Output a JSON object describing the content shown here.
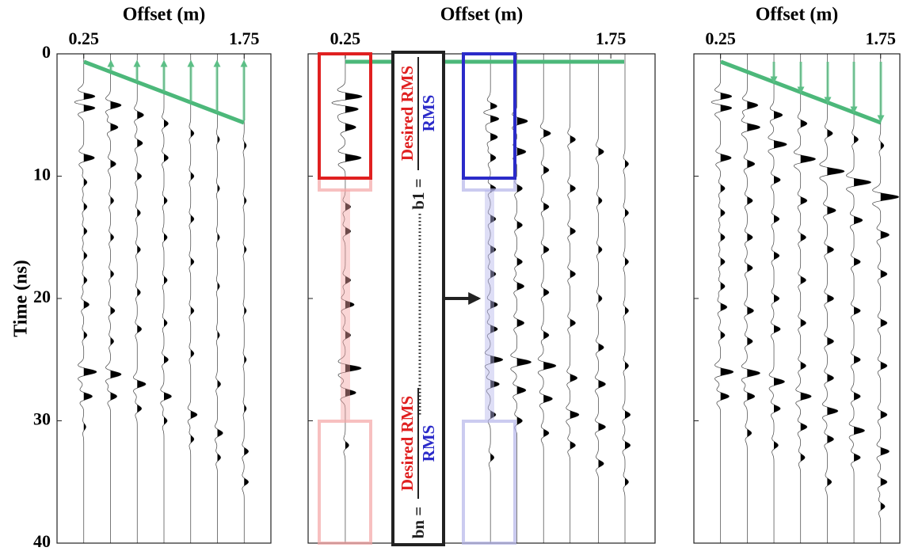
{
  "chart_data": [
    {
      "type": "wiggle",
      "x_label": "Offset (m)",
      "y_label": "Time (ns)",
      "xlim": [
        0,
        2
      ],
      "xticks": [
        0.25,
        1.75
      ],
      "ylim": [
        0,
        40
      ],
      "yticks": [
        0,
        10,
        20,
        30,
        40
      ],
      "y_inverted": true,
      "ytick_labels": true,
      "trace_color": "#000000",
      "fill_color": "#000000",
      "traces": [
        {
          "offset": 0.25,
          "events": [
            [
              3.5,
              0.12
            ],
            [
              4.4,
              0.12
            ],
            [
              8.5,
              0.1
            ],
            [
              10.5,
              0.03
            ],
            [
              12.5,
              0.03
            ],
            [
              14.5,
              0.03
            ],
            [
              16.5,
              0.03
            ],
            [
              18.5,
              0.03
            ],
            [
              20.5,
              0.05
            ],
            [
              23,
              0.03
            ],
            [
              26,
              0.12
            ],
            [
              28,
              0.08
            ],
            [
              30.5,
              0.02
            ]
          ]
        },
        {
          "offset": 0.5,
          "events": [
            [
              4.2,
              0.1
            ],
            [
              6,
              0.07
            ],
            [
              9,
              0.05
            ],
            [
              12,
              0.03
            ],
            [
              15,
              0.03
            ],
            [
              18,
              0.03
            ],
            [
              21,
              0.04
            ],
            [
              23.5,
              0.03
            ],
            [
              26.2,
              0.1
            ],
            [
              28,
              0.06
            ]
          ]
        },
        {
          "offset": 0.75,
          "events": [
            [
              5,
              0.06
            ],
            [
              7.3,
              0.05
            ],
            [
              10,
              0.04
            ],
            [
              13,
              0.03
            ],
            [
              16,
              0.03
            ],
            [
              19.5,
              0.03
            ],
            [
              22.5,
              0.04
            ],
            [
              27,
              0.08
            ],
            [
              29,
              0.04
            ]
          ]
        },
        {
          "offset": 1,
          "events": [
            [
              5.7,
              0.04
            ],
            [
              8.5,
              0.04
            ],
            [
              12,
              0.03
            ],
            [
              15,
              0.03
            ],
            [
              18.5,
              0.03
            ],
            [
              22,
              0.03
            ],
            [
              25,
              0.04
            ],
            [
              28,
              0.07
            ],
            [
              30,
              0.03
            ]
          ]
        },
        {
          "offset": 1.25,
          "events": [
            [
              6.5,
              0.03
            ],
            [
              10,
              0.03
            ],
            [
              13.5,
              0.03
            ],
            [
              17,
              0.03
            ],
            [
              21,
              0.03
            ],
            [
              24.5,
              0.03
            ],
            [
              29.5,
              0.06
            ],
            [
              31.5,
              0.03
            ]
          ]
        },
        {
          "offset": 1.5,
          "events": [
            [
              7,
              0.02
            ],
            [
              11,
              0.02
            ],
            [
              15,
              0.02
            ],
            [
              19,
              0.02
            ],
            [
              23,
              0.02
            ],
            [
              27,
              0.03
            ],
            [
              31,
              0.05
            ],
            [
              33,
              0.03
            ]
          ]
        },
        {
          "offset": 1.75,
          "events": [
            [
              7.5,
              0.02
            ],
            [
              12,
              0.02
            ],
            [
              16,
              0.02
            ],
            [
              21,
              0.02
            ],
            [
              25,
              0.02
            ],
            [
              29,
              0.02
            ],
            [
              32.5,
              0.04
            ],
            [
              35,
              0.04
            ]
          ]
        }
      ]
    },
    {
      "type": "wiggle",
      "x_label": "Offset (m)",
      "xlim": [
        0.04,
        2
      ],
      "xticks": [
        0.25,
        1.75
      ],
      "ylim": [
        0,
        40
      ],
      "yticks": [
        0,
        10,
        20,
        30,
        40
      ],
      "y_inverted": true,
      "ytick_labels": false,
      "trace_color": "#000000",
      "fill_color": "#000000",
      "annotations": {
        "bn": "bn =",
        "b1": "b1 =",
        "desired": "Desired RMS",
        "rms": "RMS"
      },
      "traces": [
        {
          "offset": 0.25,
          "events": [
            [
              3.5,
              0.1
            ],
            [
              4.5,
              0.08
            ],
            [
              6,
              0.06
            ],
            [
              8.5,
              0.09
            ],
            [
              12.5,
              0.03
            ],
            [
              14.5,
              0.03
            ],
            [
              18.5,
              0.03
            ],
            [
              20.5,
              0.05
            ],
            [
              23,
              0.03
            ],
            [
              25.7,
              0.09
            ],
            [
              27.7,
              0.06
            ],
            [
              32,
              0.02
            ]
          ]
        },
        {
          "offset": 1.07,
          "events": [
            [
              4.3,
              0.04
            ],
            [
              5.3,
              0.05
            ],
            [
              6.8,
              0.04
            ],
            [
              8.5,
              0.03
            ],
            [
              11,
              0.03
            ],
            [
              13.5,
              0.03
            ],
            [
              16,
              0.03
            ],
            [
              18,
              0.03
            ],
            [
              20.5,
              0.04
            ],
            [
              22.5,
              0.04
            ],
            [
              25,
              0.07
            ],
            [
              27,
              0.05
            ],
            [
              29.5,
              0.03
            ],
            [
              33,
              0.02
            ]
          ]
        },
        {
          "offset": 1.22,
          "events": [
            [
              5.5,
              0.06
            ],
            [
              8,
              0.05
            ],
            [
              11,
              0.03
            ],
            [
              14,
              0.03
            ],
            [
              17,
              0.03
            ],
            [
              19,
              0.04
            ],
            [
              22,
              0.04
            ],
            [
              25.2,
              0.08
            ],
            [
              27.5,
              0.05
            ],
            [
              30,
              0.03
            ]
          ]
        },
        {
          "offset": 1.37,
          "events": [
            [
              6.5,
              0.04
            ],
            [
              9.5,
              0.03
            ],
            [
              12.5,
              0.03
            ],
            [
              16,
              0.03
            ],
            [
              19.5,
              0.03
            ],
            [
              23,
              0.03
            ],
            [
              25.5,
              0.07
            ],
            [
              28.2,
              0.05
            ],
            [
              31,
              0.03
            ]
          ]
        },
        {
          "offset": 1.52,
          "events": [
            [
              7,
              0.03
            ],
            [
              11,
              0.03
            ],
            [
              14.5,
              0.03
            ],
            [
              18,
              0.03
            ],
            [
              22,
              0.03
            ],
            [
              26.5,
              0.04
            ],
            [
              29.5,
              0.05
            ],
            [
              32,
              0.03
            ]
          ]
        },
        {
          "offset": 1.68,
          "events": [
            [
              8,
              0.03
            ],
            [
              12,
              0.02
            ],
            [
              16,
              0.02
            ],
            [
              20,
              0.02
            ],
            [
              24,
              0.03
            ],
            [
              27,
              0.04
            ],
            [
              30.5,
              0.04
            ],
            [
              33.5,
              0.03
            ]
          ]
        },
        {
          "offset": 1.83,
          "events": [
            [
              9,
              0.02
            ],
            [
              13,
              0.02
            ],
            [
              17,
              0.02
            ],
            [
              21,
              0.02
            ],
            [
              25.5,
              0.02
            ],
            [
              29.5,
              0.03
            ],
            [
              32,
              0.03
            ],
            [
              35,
              0.02
            ]
          ]
        }
      ]
    },
    {
      "type": "wiggle",
      "x_label": "Offset (m)",
      "xlim": [
        0,
        1.93
      ],
      "xticks": [
        0.25,
        1.75
      ],
      "ylim": [
        0,
        40
      ],
      "yticks": [
        0,
        10,
        20,
        30,
        40
      ],
      "y_inverted": true,
      "ytick_labels": false,
      "trace_color": "#000000",
      "fill_color": "#000000",
      "traces": [
        {
          "offset": 0.25,
          "events": [
            [
              3.5,
              0.12
            ],
            [
              4.4,
              0.12
            ],
            [
              8.5,
              0.1
            ],
            [
              11,
              0.04
            ],
            [
              13,
              0.04
            ],
            [
              15,
              0.04
            ],
            [
              17,
              0.04
            ],
            [
              19,
              0.04
            ],
            [
              20.7,
              0.06
            ],
            [
              23,
              0.04
            ],
            [
              26,
              0.12
            ],
            [
              28,
              0.08
            ]
          ]
        },
        {
          "offset": 0.5,
          "events": [
            [
              4.2,
              0.1
            ],
            [
              6,
              0.12
            ],
            [
              9,
              0.07
            ],
            [
              12,
              0.05
            ],
            [
              15,
              0.05
            ],
            [
              17.5,
              0.05
            ],
            [
              21,
              0.06
            ],
            [
              23.5,
              0.05
            ],
            [
              26.1,
              0.12
            ],
            [
              28,
              0.07
            ],
            [
              31,
              0.04
            ]
          ]
        },
        {
          "offset": 0.75,
          "events": [
            [
              5,
              0.08
            ],
            [
              7.4,
              0.12
            ],
            [
              10.3,
              0.06
            ],
            [
              13.5,
              0.05
            ],
            [
              16.5,
              0.05
            ],
            [
              20,
              0.05
            ],
            [
              22.5,
              0.06
            ],
            [
              26.8,
              0.1
            ],
            [
              29,
              0.06
            ],
            [
              32,
              0.04
            ]
          ]
        },
        {
          "offset": 1,
          "events": [
            [
              5.7,
              0.06
            ],
            [
              8.6,
              0.14
            ],
            [
              12,
              0.06
            ],
            [
              15,
              0.05
            ],
            [
              18.5,
              0.05
            ],
            [
              22,
              0.05
            ],
            [
              25.5,
              0.05
            ],
            [
              28,
              0.1
            ],
            [
              30.5,
              0.06
            ],
            [
              33,
              0.04
            ]
          ]
        },
        {
          "offset": 1.25,
          "events": [
            [
              6.5,
              0.05
            ],
            [
              9.6,
              0.16
            ],
            [
              12.8,
              0.08
            ],
            [
              16,
              0.06
            ],
            [
              20,
              0.06
            ],
            [
              23.5,
              0.06
            ],
            [
              26.5,
              0.06
            ],
            [
              29.2,
              0.1
            ],
            [
              31.5,
              0.06
            ],
            [
              35,
              0.04
            ]
          ]
        },
        {
          "offset": 1.5,
          "events": [
            [
              7,
              0.04
            ],
            [
              10.5,
              0.16
            ],
            [
              13.6,
              0.08
            ],
            [
              17,
              0.06
            ],
            [
              21,
              0.06
            ],
            [
              25,
              0.06
            ],
            [
              28,
              0.06
            ],
            [
              30.8,
              0.1
            ],
            [
              33,
              0.06
            ]
          ]
        },
        {
          "offset": 1.75,
          "events": [
            [
              7.5,
              0.03
            ],
            [
              11.7,
              0.17
            ],
            [
              14.8,
              0.08
            ],
            [
              18,
              0.06
            ],
            [
              22,
              0.06
            ],
            [
              25.5,
              0.06
            ],
            [
              29.5,
              0.06
            ],
            [
              32.5,
              0.08
            ],
            [
              35,
              0.06
            ],
            [
              37,
              0.04
            ]
          ]
        }
      ]
    }
  ]
}
